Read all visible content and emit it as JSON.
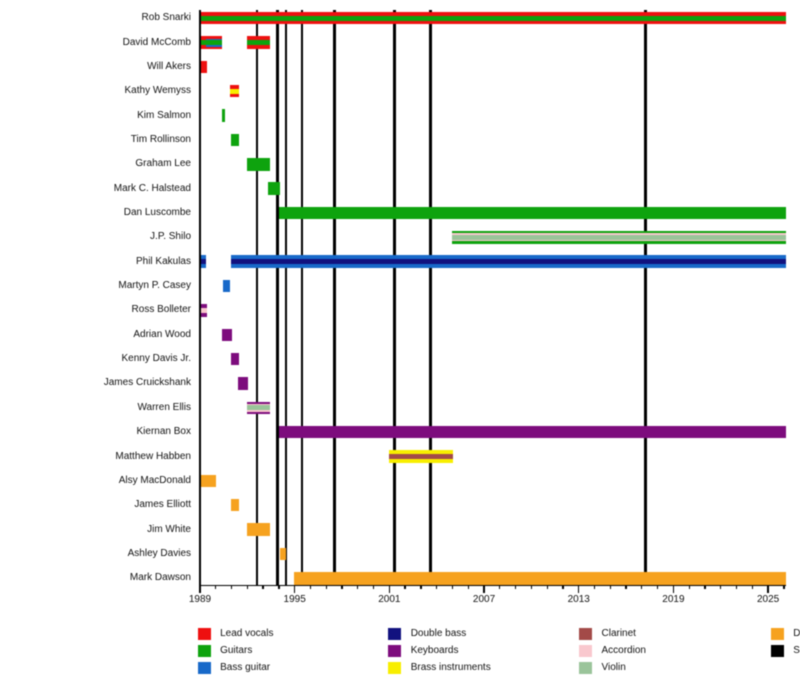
{
  "chart_data": {
    "type": "timeline",
    "title": "",
    "description": "Band members timeline: colored bars show each member's tenure and roles; vertical black lines mark studio albums.",
    "x_axis": {
      "start_year": 1989,
      "end_year": 2026.12,
      "tick_label_years": [
        1989,
        1995,
        2001,
        2007,
        2013,
        2019,
        2025
      ],
      "tick_labels": [
        "1989",
        "1995",
        "2001",
        "2007",
        "2013",
        "2019",
        "2025"
      ],
      "minor_tick_every_years": 1,
      "major_tick_every_years": 6
    },
    "colors": {
      "lead_vocals": "#ee1010",
      "guitars": "#0ea30e",
      "bass_guitar": "#1869c9",
      "double_bass": "#12127f",
      "keyboards": "#7d0c7d",
      "brass": "#f8ee00",
      "clarinet": "#a34a48",
      "accordion": "#f9c8ce",
      "violin": "#9ac49a",
      "drums": "#f6a21f",
      "album_line": "#000000"
    },
    "album_line_years": [
      1992.6,
      1993.93,
      1994.45,
      1995.47,
      1997.53,
      2001.33,
      2003.6,
      2017.24
    ],
    "members": [
      {
        "name": "Rob Snarki",
        "segments": [
          {
            "start": 1989.08,
            "end": 2026.12,
            "roles": [
              "lead_vocals",
              "guitars"
            ]
          }
        ]
      },
      {
        "name": "David McComb",
        "segments": [
          {
            "start": 1989.08,
            "end": 1989.38,
            "roles": [
              "lead_vocals",
              "guitars"
            ]
          },
          {
            "start": 1989.38,
            "end": 1990.41,
            "roles": [
              "lead_vocals",
              "bass_guitar",
              "guitars"
            ]
          },
          {
            "start": 1991.97,
            "end": 1993.43,
            "roles": [
              "lead_vocals",
              "guitars"
            ]
          }
        ]
      },
      {
        "name": "Will Akers",
        "segments": [
          {
            "start": 1989.08,
            "end": 1989.47,
            "roles": [
              "lead_vocals"
            ]
          }
        ]
      },
      {
        "name": "Kathy Wemyss",
        "segments": [
          {
            "start": 1990.93,
            "end": 1991.47,
            "roles": [
              "lead_vocals",
              "brass"
            ]
          }
        ]
      },
      {
        "name": "Kim Salmon",
        "segments": [
          {
            "start": 1990.39,
            "end": 1990.58,
            "roles": [
              "guitars"
            ]
          }
        ]
      },
      {
        "name": "Tim Rollinson",
        "segments": [
          {
            "start": 1990.95,
            "end": 1991.49,
            "roles": [
              "guitars"
            ]
          }
        ]
      },
      {
        "name": "Graham Lee",
        "segments": [
          {
            "start": 1991.98,
            "end": 1993.43,
            "roles": [
              "guitars"
            ]
          }
        ]
      },
      {
        "name": "Mark C. Halstead",
        "segments": [
          {
            "start": 1993.33,
            "end": 1994.05,
            "roles": [
              "guitars"
            ]
          }
        ]
      },
      {
        "name": "Dan Luscombe",
        "segments": [
          {
            "start": 1993.99,
            "end": 2026.12,
            "roles": [
              "guitars"
            ]
          }
        ]
      },
      {
        "name": "J.P. Shilo",
        "segments": [
          {
            "start": 2004.94,
            "end": 2026.12,
            "roles": [
              "guitars",
              "accordion",
              "violin"
            ]
          }
        ]
      },
      {
        "name": "Phil Kakulas",
        "segments": [
          {
            "start": 1989.08,
            "end": 1989.41,
            "roles": [
              "bass_guitar",
              "double_bass"
            ]
          },
          {
            "start": 1990.96,
            "end": 2026.12,
            "roles": [
              "bass_guitar",
              "double_bass"
            ]
          }
        ]
      },
      {
        "name": "Martyn P. Casey",
        "segments": [
          {
            "start": 1990.47,
            "end": 1990.91,
            "roles": [
              "bass_guitar"
            ]
          }
        ]
      },
      {
        "name": "Ross Bolleter",
        "segments": [
          {
            "start": 1989.08,
            "end": 1989.46,
            "roles": [
              "keyboards",
              "accordion"
            ]
          }
        ]
      },
      {
        "name": "Adrian Wood",
        "segments": [
          {
            "start": 1990.39,
            "end": 1991.03,
            "roles": [
              "keyboards"
            ]
          }
        ]
      },
      {
        "name": "Kenny Davis Jr.",
        "segments": [
          {
            "start": 1990.95,
            "end": 1991.49,
            "roles": [
              "keyboards"
            ]
          }
        ]
      },
      {
        "name": "James Cruickshank",
        "segments": [
          {
            "start": 1991.38,
            "end": 1992.02,
            "roles": [
              "keyboards"
            ]
          }
        ]
      },
      {
        "name": "Warren Ellis",
        "segments": [
          {
            "start": 1991.97,
            "end": 1993.44,
            "roles": [
              "keyboards",
              "accordion",
              "violin"
            ]
          }
        ]
      },
      {
        "name": "Kiernan Box",
        "segments": [
          {
            "start": 1993.99,
            "end": 2026.12,
            "roles": [
              "keyboards"
            ]
          }
        ]
      },
      {
        "name": "Matthew Habben",
        "segments": [
          {
            "start": 2000.95,
            "end": 2005.05,
            "roles": [
              "brass",
              "clarinet"
            ]
          }
        ]
      },
      {
        "name": "Alsy MacDonald",
        "segments": [
          {
            "start": 1989.09,
            "end": 1990.03,
            "roles": [
              "drums"
            ]
          }
        ]
      },
      {
        "name": "James Elliott",
        "segments": [
          {
            "start": 1990.95,
            "end": 1991.47,
            "roles": [
              "drums"
            ]
          }
        ]
      },
      {
        "name": "Jim White",
        "segments": [
          {
            "start": 1991.95,
            "end": 1993.44,
            "roles": [
              "drums"
            ]
          }
        ]
      },
      {
        "name": "Ashley Davies",
        "segments": [
          {
            "start": 1994.04,
            "end": 1994.44,
            "roles": [
              "drums"
            ]
          }
        ]
      },
      {
        "name": "Mark Dawson",
        "segments": [
          {
            "start": 1994.94,
            "end": 2026.12,
            "roles": [
              "drums"
            ]
          }
        ]
      }
    ],
    "legend": {
      "columns": [
        [
          {
            "label": "Lead vocals",
            "color_key": "lead_vocals"
          },
          {
            "label": "Guitars",
            "color_key": "guitars"
          },
          {
            "label": "Bass guitar",
            "color_key": "bass_guitar"
          }
        ],
        [
          {
            "label": "Double bass",
            "color_key": "double_bass"
          },
          {
            "label": "Keyboards",
            "color_key": "keyboards"
          },
          {
            "label": "Brass instruments",
            "color_key": "brass"
          }
        ],
        [
          {
            "label": "Clarinet",
            "color_key": "clarinet"
          },
          {
            "label": "Accordion",
            "color_key": "accordion"
          },
          {
            "label": "Violin",
            "color_key": "violin"
          }
        ],
        [
          {
            "label": "D",
            "color_key": "drums"
          },
          {
            "label": "S",
            "color_key": "album_line"
          }
        ]
      ]
    }
  }
}
